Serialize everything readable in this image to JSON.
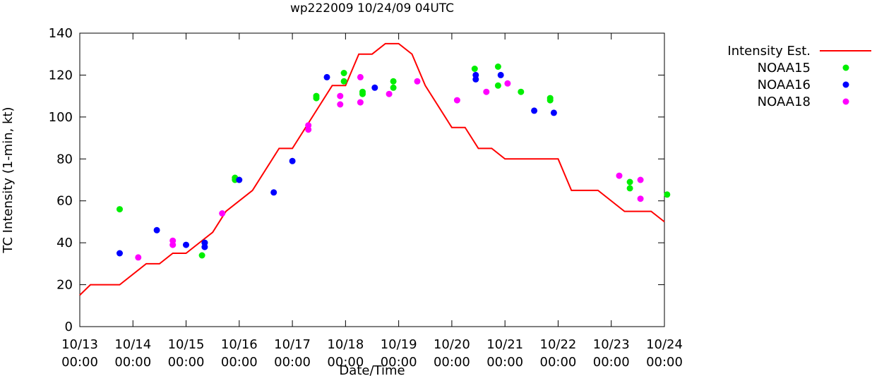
{
  "chart_data": {
    "type": "line",
    "title": "wp222009 10/24/09 04UTC",
    "xlabel": "Date/Time",
    "ylabel": "TC Intensity (1-min, kt)",
    "xlim": [
      "10/13 00:00",
      "10/24 00:00"
    ],
    "ylim": [
      0,
      140
    ],
    "grid": false,
    "legend_position": "right, outside plot",
    "x_ticks": [
      {
        "day": 13,
        "line1": "10/13",
        "line2": "00:00"
      },
      {
        "day": 14,
        "line1": "10/14",
        "line2": "00:00"
      },
      {
        "day": 15,
        "line1": "10/15",
        "line2": "00:00"
      },
      {
        "day": 16,
        "line1": "10/16",
        "line2": "00:00"
      },
      {
        "day": 17,
        "line1": "10/17",
        "line2": "00:00"
      },
      {
        "day": 18,
        "line1": "10/18",
        "line2": "00:00"
      },
      {
        "day": 19,
        "line1": "10/19",
        "line2": "00:00"
      },
      {
        "day": 20,
        "line1": "10/20",
        "line2": "00:00"
      },
      {
        "day": 21,
        "line1": "10/21",
        "line2": "00:00"
      },
      {
        "day": 22,
        "line1": "10/22",
        "line2": "00:00"
      },
      {
        "day": 23,
        "line1": "10/23",
        "line2": "00:00"
      },
      {
        "day": 24,
        "line1": "10/24",
        "line2": "00:00"
      }
    ],
    "y_ticks": [
      0,
      20,
      40,
      60,
      80,
      100,
      120,
      140
    ],
    "series": [
      {
        "name": "Intensity Est.",
        "kind": "line",
        "color": "#ff0000",
        "points": [
          [
            13.0,
            15
          ],
          [
            13.2,
            20
          ],
          [
            13.75,
            20
          ],
          [
            14.25,
            30
          ],
          [
            14.5,
            30
          ],
          [
            14.75,
            35
          ],
          [
            15.0,
            35
          ],
          [
            15.25,
            40
          ],
          [
            15.5,
            45
          ],
          [
            15.75,
            55
          ],
          [
            16.25,
            65
          ],
          [
            16.75,
            85
          ],
          [
            17.0,
            85
          ],
          [
            17.75,
            115
          ],
          [
            18.0,
            115
          ],
          [
            18.25,
            130
          ],
          [
            18.5,
            130
          ],
          [
            18.75,
            135
          ],
          [
            19.0,
            135
          ],
          [
            19.25,
            130
          ],
          [
            19.5,
            115
          ],
          [
            20.0,
            95
          ],
          [
            20.25,
            95
          ],
          [
            20.5,
            85
          ],
          [
            20.75,
            85
          ],
          [
            21.0,
            80
          ],
          [
            22.0,
            80
          ],
          [
            22.25,
            65
          ],
          [
            22.75,
            65
          ],
          [
            23.25,
            55
          ],
          [
            23.75,
            55
          ],
          [
            24.0,
            50
          ]
        ]
      },
      {
        "name": "NOAA15",
        "kind": "points",
        "color": "#00ee00",
        "points": [
          [
            13.75,
            56
          ],
          [
            15.3,
            34
          ],
          [
            15.35,
            40
          ],
          [
            15.92,
            70
          ],
          [
            15.92,
            71
          ],
          [
            17.45,
            109
          ],
          [
            17.45,
            110
          ],
          [
            17.97,
            117
          ],
          [
            17.97,
            121
          ],
          [
            18.32,
            111
          ],
          [
            18.32,
            112
          ],
          [
            18.9,
            114
          ],
          [
            18.9,
            117
          ],
          [
            20.43,
            123
          ],
          [
            20.87,
            115
          ],
          [
            20.87,
            124
          ],
          [
            21.3,
            112
          ],
          [
            21.85,
            108
          ],
          [
            21.85,
            109
          ],
          [
            23.35,
            66
          ],
          [
            23.35,
            69
          ],
          [
            24.05,
            63
          ]
        ]
      },
      {
        "name": "NOAA16",
        "kind": "points",
        "color": "#0000ff",
        "points": [
          [
            13.75,
            35
          ],
          [
            14.45,
            46
          ],
          [
            15.0,
            39
          ],
          [
            15.35,
            38
          ],
          [
            15.35,
            40
          ],
          [
            16.0,
            70
          ],
          [
            16.65,
            64
          ],
          [
            17.0,
            79
          ],
          [
            17.65,
            119
          ],
          [
            18.55,
            114
          ],
          [
            20.45,
            118
          ],
          [
            20.45,
            120
          ],
          [
            20.92,
            120
          ],
          [
            21.55,
            103
          ],
          [
            21.92,
            102
          ]
        ]
      },
      {
        "name": "NOAA18",
        "kind": "points",
        "color": "#ff00ff",
        "points": [
          [
            14.1,
            33
          ],
          [
            14.75,
            39
          ],
          [
            14.75,
            41
          ],
          [
            15.68,
            54
          ],
          [
            17.3,
            94
          ],
          [
            17.3,
            96
          ],
          [
            17.9,
            106
          ],
          [
            17.9,
            110
          ],
          [
            18.28,
            107
          ],
          [
            18.28,
            119
          ],
          [
            18.82,
            111
          ],
          [
            19.35,
            117
          ],
          [
            20.1,
            108
          ],
          [
            20.65,
            112
          ],
          [
            21.05,
            116
          ],
          [
            23.15,
            72
          ],
          [
            23.55,
            61
          ],
          [
            23.55,
            70
          ]
        ]
      }
    ]
  }
}
